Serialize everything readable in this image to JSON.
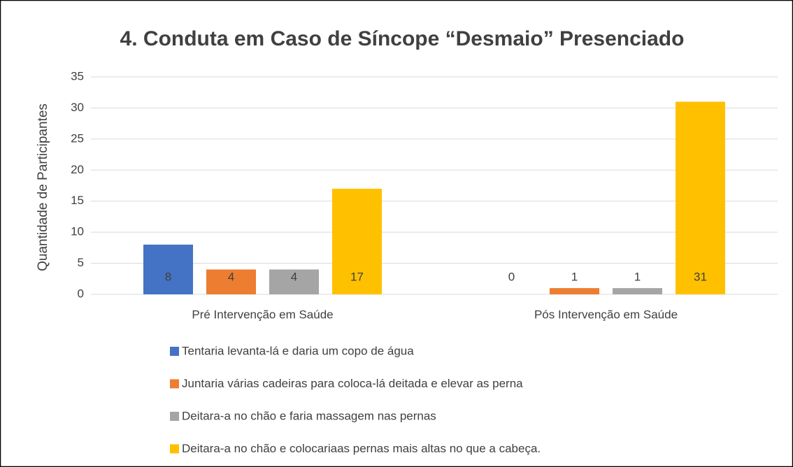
{
  "chart_data": {
    "type": "bar",
    "title": "4. Conduta em Caso de Síncope “Desmaio”  Presenciado",
    "ylabel": "Quantidade de Participantes",
    "categories": [
      "Pré Intervenção em Saúde",
      "Pós Intervenção em Saúde"
    ],
    "series": [
      {
        "name": "Tentaria levanta-lá e daria um copo de água",
        "color": "#4472c4",
        "values": [
          8,
          0
        ]
      },
      {
        "name": "Juntaria várias cadeiras para coloca-lá  deitada e elevar as perna",
        "color": "#ed7d31",
        "values": [
          4,
          1
        ]
      },
      {
        "name": "Deitara-a no chão e faria massagem nas pernas",
        "color": "#a5a5a5",
        "values": [
          4,
          1
        ]
      },
      {
        "name": "Deitara-a no chão e colocariaas pernas mais altas no que a cabeça.",
        "color": "#ffc000",
        "values": [
          17,
          31
        ]
      }
    ],
    "ylim": [
      0,
      35
    ],
    "yticks": [
      0,
      5,
      10,
      15,
      20,
      25,
      30,
      35
    ],
    "grid": true,
    "legend": "bottom"
  }
}
